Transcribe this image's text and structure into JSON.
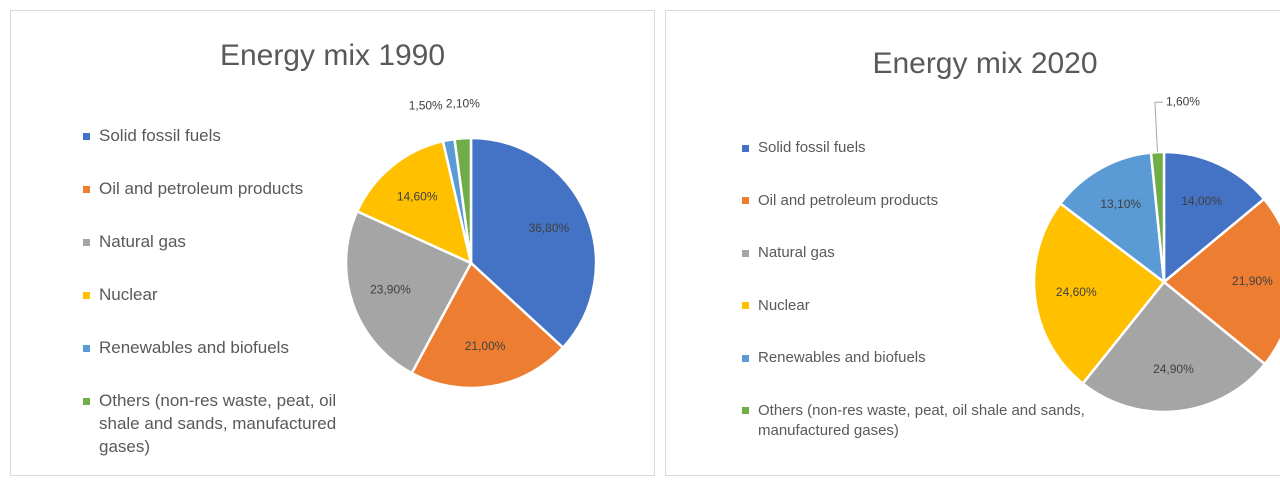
{
  "chart_data": [
    {
      "type": "pie",
      "title": "Energy mix 1990",
      "categories": [
        "Solid fossil fuels",
        "Oil and petroleum products",
        "Natural gas",
        "Nuclear",
        "Renewables and biofuels",
        "Others (non-res waste, peat, oil shale and sands, manufactured gases)"
      ],
      "values": [
        36.8,
        21.0,
        23.9,
        14.6,
        1.5,
        2.1
      ],
      "value_labels": [
        "36,80%",
        "21,00%",
        "23,90%",
        "14,60%",
        "1,50%",
        "2,10%"
      ],
      "colors": [
        "#4472c4",
        "#ed7d31",
        "#a5a5a5",
        "#ffc000",
        "#5b9bd5",
        "#70ad47"
      ],
      "legend": "left"
    },
    {
      "type": "pie",
      "title": "Energy mix 2020",
      "categories": [
        "Solid fossil fuels",
        "Oil and petroleum products",
        "Natural gas",
        "Nuclear",
        "Renewables and biofuels",
        "Others (non-res waste, peat, oil shale and sands, manufactured gases)"
      ],
      "values": [
        14.0,
        21.9,
        24.9,
        24.6,
        13.1,
        1.6
      ],
      "value_labels": [
        "14,00%",
        "21,90%",
        "24,90%",
        "24,60%",
        "13,10%",
        "1,60%"
      ],
      "colors": [
        "#4472c4",
        "#ed7d31",
        "#a5a5a5",
        "#ffc000",
        "#5b9bd5",
        "#70ad47"
      ],
      "legend": "left"
    }
  ]
}
